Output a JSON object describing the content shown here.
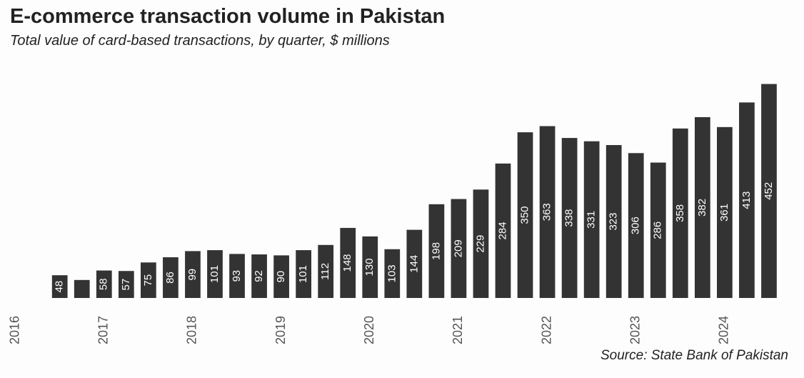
{
  "chart_data": {
    "type": "bar",
    "title": "E-commerce transaction volume in Pakistan",
    "subtitle": "Total value of card-based transactions, by quarter, $ millions",
    "source": "Source: State Bank of Pakistan",
    "x": [
      2016.5,
      2016.75,
      2017,
      2017.25,
      2017.5,
      2017.75,
      2018,
      2018.25,
      2018.5,
      2018.75,
      2019,
      2019.25,
      2019.5,
      2019.75,
      2020,
      2020.25,
      2020.5,
      2020.75,
      2021,
      2021.25,
      2021.5,
      2021.75,
      2022,
      2022.25,
      2022.5,
      2022.75,
      2023,
      2023.25,
      2023.5,
      2023.75,
      2024,
      2024.25,
      2024.5
    ],
    "values": [
      48,
      38,
      58,
      57,
      75,
      86,
      99,
      101,
      93,
      92,
      90,
      101,
      112,
      148,
      130,
      103,
      144,
      198,
      209,
      229,
      284,
      350,
      363,
      338,
      331,
      323,
      306,
      286,
      358,
      382,
      361,
      413,
      452
    ],
    "value_labels": [
      "48",
      null,
      "58",
      "57",
      "75",
      "86",
      "99",
      "101",
      "93",
      "92",
      "90",
      "101",
      "112",
      "148",
      "130",
      "103",
      "144",
      "198",
      "209",
      "229",
      "284",
      "350",
      "363",
      "338",
      "331",
      "323",
      "306",
      "286",
      "358",
      "382",
      "361",
      "413",
      "452"
    ],
    "color": "#333333",
    "xlim": [
      2015.85,
      2024.75
    ],
    "xticks": [
      2016,
      2017,
      2018,
      2019,
      2020,
      2021,
      2022,
      2023,
      2024
    ],
    "ylim": [
      0,
      480
    ]
  }
}
